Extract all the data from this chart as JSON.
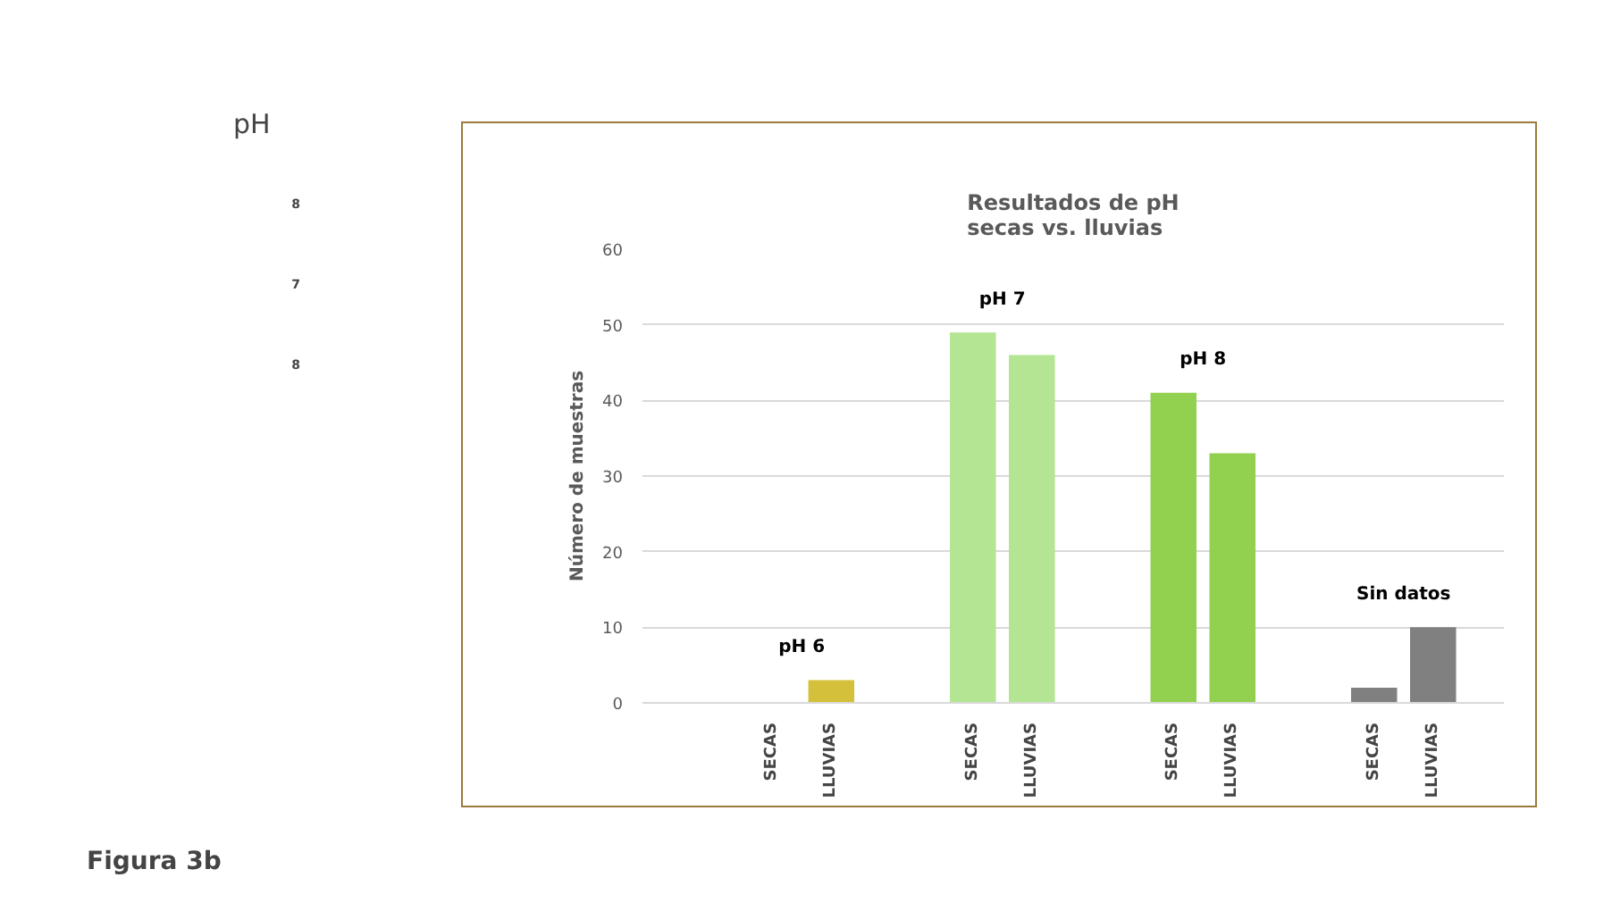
{
  "chart_data": {
    "type": "bar",
    "title": "Resultados de pH\nsecas vs. lluvias",
    "ylabel": "Número de muestras",
    "categories": [
      "SECAS",
      "LLUVIAS",
      "SECAS",
      "LLUVIAS",
      "SECAS",
      "LLUVIAS",
      "SECAS",
      "LLUVIAS"
    ],
    "values": [
      0,
      3,
      49,
      46,
      41,
      33,
      2,
      10
    ],
    "colors": [
      "#d4c03a",
      "#d4c03a",
      "#b3e592",
      "#b3e592",
      "#92d050",
      "#92d050",
      "#808080",
      "#808080"
    ],
    "ylim": [
      0,
      60
    ],
    "yticks": [
      0,
      10,
      20,
      30,
      40,
      50,
      60
    ],
    "grid": "y",
    "annotations": [
      "pH 6",
      "pH 7",
      "pH 8",
      "Sin datos",
      "Figura 3b",
      "pH",
      "8",
      "7",
      "8"
    ]
  }
}
